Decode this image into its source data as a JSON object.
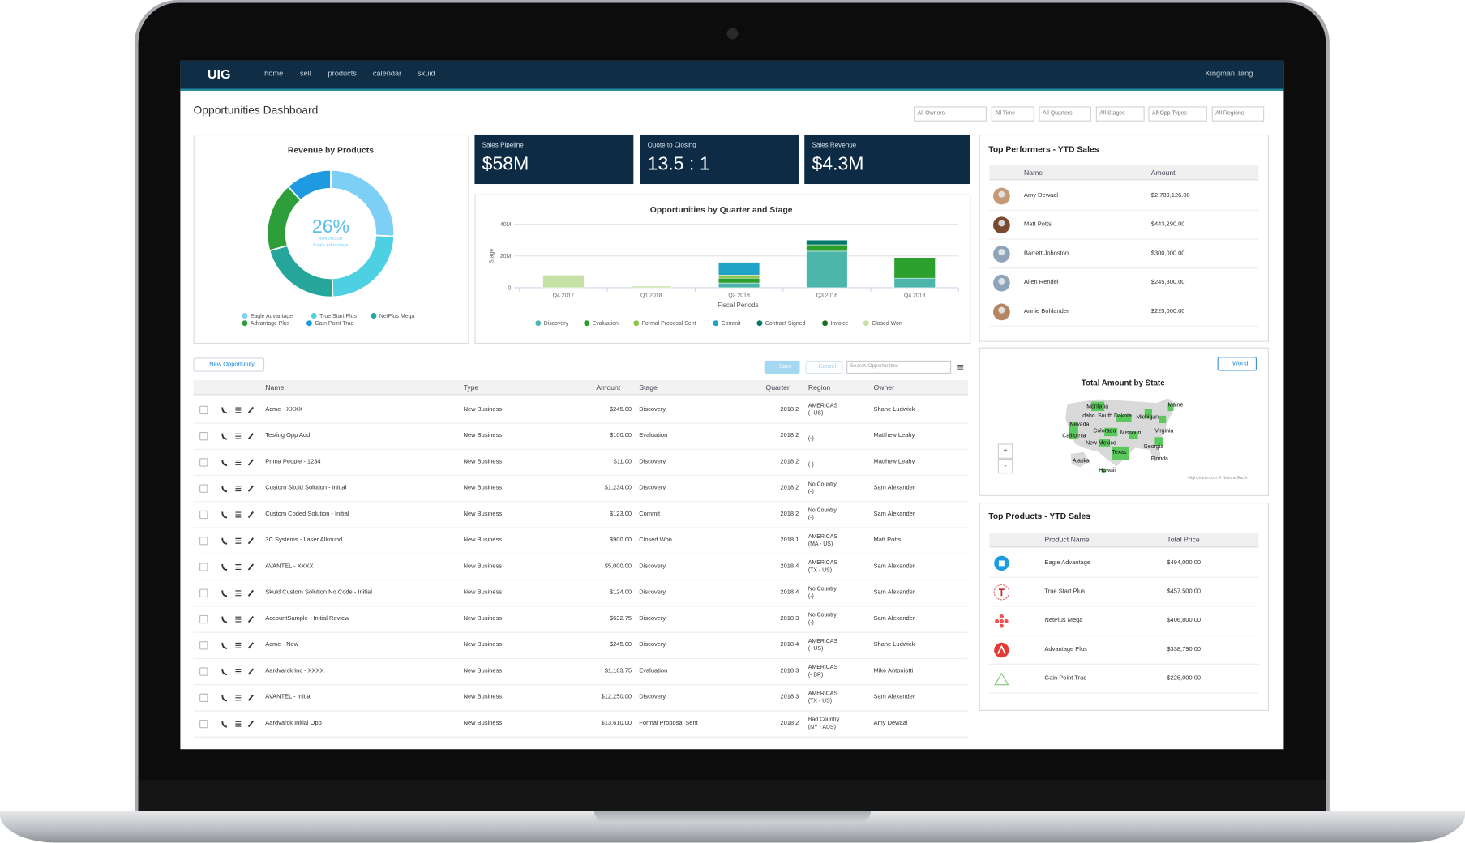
{
  "nav": {
    "logo": "UIG",
    "items": [
      "home",
      "sell",
      "products",
      "calendar",
      "skuid"
    ],
    "user": "Kingman Tang"
  },
  "title": "Opportunities Dashboard",
  "filters": [
    "All Owners",
    "All Time",
    "All Quarters",
    "All Stages",
    "All Opp Types",
    "All Regions"
  ],
  "revenue_chart": {
    "type": "pie",
    "title": "Revenue by Products",
    "center_value": "26%",
    "center_amount": "494,000.00",
    "center_label": "Eagle Advantage",
    "categories": [
      "Eagle Advantage",
      "True Start Plus",
      "NetPlus Mega",
      "Advantage Plus",
      "Gain Point Trad"
    ],
    "values": [
      494000,
      457500,
      406800,
      338790,
      225000
    ],
    "colors": [
      "#7ecff5",
      "#4dd0e1",
      "#26a69a",
      "#2e9e3a",
      "#1e9be0"
    ]
  },
  "kpis": [
    {
      "label": "Sales Pipeline",
      "value": "$58M"
    },
    {
      "label": "Quote to Closing",
      "value": "13.5 : 1"
    },
    {
      "label": "Sales Revenue",
      "value": "$4.3M"
    }
  ],
  "opportunities_chart": {
    "type": "bar",
    "stacked": true,
    "title": "Opportunities by Quarter and Stage",
    "y_label": "Stage",
    "x_label": "Fiscal Periods",
    "categories": [
      "Q4 2017",
      "Q1 2018",
      "Q2 2018",
      "Q3 2018",
      "Q4 2018"
    ],
    "ylim": [
      0,
      40000000
    ],
    "yticks": [
      0,
      {
        "value": 20000000,
        "label": "20M"
      },
      {
        "value": 40000000,
        "label": "40M"
      }
    ],
    "grid": true,
    "series": [
      {
        "name": "Discovery",
        "color": "#4db6ac",
        "values": [
          null,
          null,
          3000000,
          23000000,
          6000000
        ]
      },
      {
        "name": "Evaluation",
        "color": "#2ca02c",
        "values": [
          null,
          null,
          3000000,
          4000000,
          13000000
        ]
      },
      {
        "name": "Formal Proposal Sent",
        "color": "#8bc34a",
        "values": [
          null,
          null,
          2000000,
          null,
          null
        ]
      },
      {
        "name": "Commit",
        "color": "#1fa3c8",
        "values": [
          null,
          null,
          8000000,
          null,
          null
        ]
      },
      {
        "name": "Contract Signed",
        "color": "#00796b",
        "values": [
          null,
          null,
          null,
          3000000,
          null
        ]
      },
      {
        "name": "Invoice",
        "color": "#1b6e20",
        "values": [
          null,
          null,
          null,
          null,
          null
        ]
      },
      {
        "name": "Closed Won",
        "color": "#c5e1a5",
        "values": [
          8000000,
          1000000,
          null,
          null,
          null
        ]
      }
    ]
  },
  "performers": {
    "title": "Top Performers - YTD Sales",
    "columns": [
      "Name",
      "Amount"
    ],
    "rows": [
      [
        "Amy Dewaal",
        "$2,789,126.00"
      ],
      [
        "Matt Potts",
        "$443,290.00"
      ],
      [
        "Barrett Johnston",
        "$300,000.00"
      ],
      [
        "Allen Rendel",
        "$245,300.00"
      ],
      [
        "Annie Bohlander",
        "$225,000.00"
      ]
    ]
  },
  "map": {
    "button": "World",
    "title": "Total Amount by State",
    "zoom": [
      "+",
      "-"
    ],
    "labels": [
      "Montana",
      "Idaho",
      "South Dakota",
      "Michigan",
      "Maine",
      "Nevada",
      "Colorado",
      "Missouri",
      "Virginia",
      "California",
      "New Mexico",
      "Texas",
      "Georgia",
      "Florida",
      "Alaska",
      "Hawaii"
    ],
    "credit": "Highcharts.com © Natural Earth"
  },
  "products": {
    "title": "Top Products - YTD Sales",
    "columns": [
      "Product Name",
      "Total Price"
    ],
    "rows": [
      [
        "Eagle Advantage",
        "$494,000.00"
      ],
      [
        "True Start Plus",
        "$457,500.00"
      ],
      [
        "NetPlus Mega",
        "$406,800.00"
      ],
      [
        "Advantage Plus",
        "$338,790.00"
      ],
      [
        "Gain Point Trad",
        "$225,000.00"
      ]
    ]
  },
  "table": {
    "new_button": "New Opportunity",
    "save": "Save",
    "cancel": "Cancel",
    "search_placeholder": "Search Opportunities",
    "columns": [
      "Name",
      "Type",
      "Amount",
      "Stage",
      "Quarter",
      "Region",
      "Owner"
    ],
    "rows": [
      [
        "Acme - XXXX",
        "New Business",
        "$245.00",
        "Discovery",
        "2018 2",
        [
          "AMERICAS",
          "(- US)"
        ],
        "Shane Ludwick"
      ],
      [
        "Testing Opp Add",
        "New Business",
        "$100.00",
        "Evaluation",
        "2018 2",
        [
          "(-)"
        ],
        "Matthew Leahy"
      ],
      [
        "Prima People - 1234",
        "New Business",
        "$11.00",
        "Discovery",
        "2018 2",
        [
          "(-)"
        ],
        "Matthew Leahy"
      ],
      [
        "Custom Skuid Solution - Initial",
        "New Business",
        "$1,234.00",
        "Discovery",
        "2018 2",
        [
          "No Country",
          "(-)"
        ],
        "Sam Alexander"
      ],
      [
        "Custom Coded Solution - Initial",
        "New Business",
        "$123.00",
        "Commit",
        "2018 2",
        [
          "No Country",
          "(-)"
        ],
        "Sam Alexander"
      ],
      [
        "3C Systems - Laser Allround",
        "New Business",
        "$900.00",
        "Closed Won",
        "2018 1",
        [
          "AMERICAS",
          "(MA - US)"
        ],
        "Matt Potts"
      ],
      [
        "AVANTEL - XXXX",
        "New Business",
        "$5,000.00",
        "Discovery",
        "2018 4",
        [
          "AMERICAS",
          "(TX - US)"
        ],
        "Sam Alexander"
      ],
      [
        "Skuid Custom Solution No Code - Initial",
        "New Business",
        "$124.00",
        "Discovery",
        "2018 4",
        [
          "No Country",
          "(-)"
        ],
        "Sam Alexander"
      ],
      [
        "AccountSample - Initial Review",
        "New Business",
        "$632.75",
        "Discovery",
        "2018 3",
        [
          "No Country",
          "(-)"
        ],
        "Sam Alexander"
      ],
      [
        "Acme - New",
        "New Business",
        "$245.00",
        "Discovery",
        "2018 4",
        [
          "AMERICAS",
          "(- US)"
        ],
        "Shane Ludwick"
      ],
      [
        "Aardvarck Inc - XXXX",
        "New Business",
        "$1,163.75",
        "Evaluation",
        "2018 3",
        [
          "AMERICAS",
          "(- BR)"
        ],
        "Mike Antoniotti"
      ],
      [
        "AVANTEL - Initial",
        "New Business",
        "$12,250.00",
        "Discovery",
        "2018 3",
        [
          "AMERICAS",
          "(TX - US)"
        ],
        "Sam Alexander"
      ],
      [
        "Aardvarck Initial Opp",
        "New Business",
        "$13,610.00",
        "Formal Proposal Sent",
        "2018 2",
        [
          "Bad Country",
          "(NY - AUS)"
        ],
        "Amy Dewaal"
      ]
    ]
  }
}
